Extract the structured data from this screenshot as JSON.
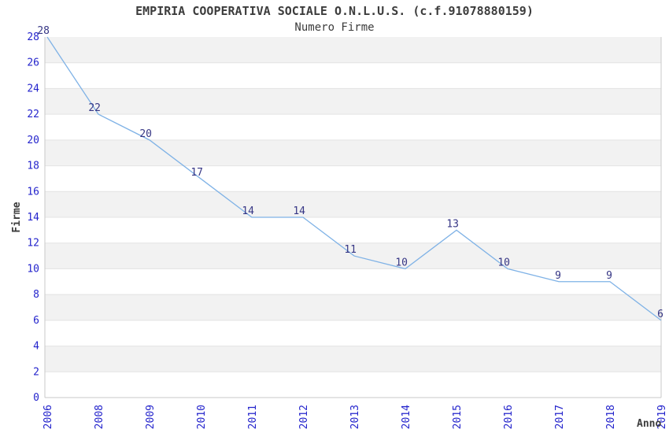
{
  "chart_data": {
    "type": "line",
    "title": "EMPIRIA COOPERATIVA SOCIALE O.N.L.U.S. (c.f.91078880159)",
    "subtitle": "Numero Firme",
    "xlabel": "Anno",
    "ylabel": "Firme",
    "categories": [
      "2006",
      "2008",
      "2009",
      "2010",
      "2011",
      "2012",
      "2013",
      "2014",
      "2015",
      "2016",
      "2017",
      "2018",
      "2019"
    ],
    "values": [
      28,
      22,
      20,
      17,
      14,
      14,
      11,
      10,
      13,
      10,
      9,
      9,
      6
    ],
    "ylim": [
      0,
      28
    ],
    "ytick_step": 2,
    "band_step": 2,
    "grid": true,
    "legend": "none",
    "x_tick_rotation": -90,
    "colors": {
      "line": "#7fb2e6",
      "tick_label": "#2424cc",
      "data_label": "#363685",
      "band": "#f2f2f2",
      "gridline": "#e3e3e3",
      "plot_border": "#c9c9c9",
      "text": "#3c3c3c",
      "background": "#ffffff"
    }
  }
}
